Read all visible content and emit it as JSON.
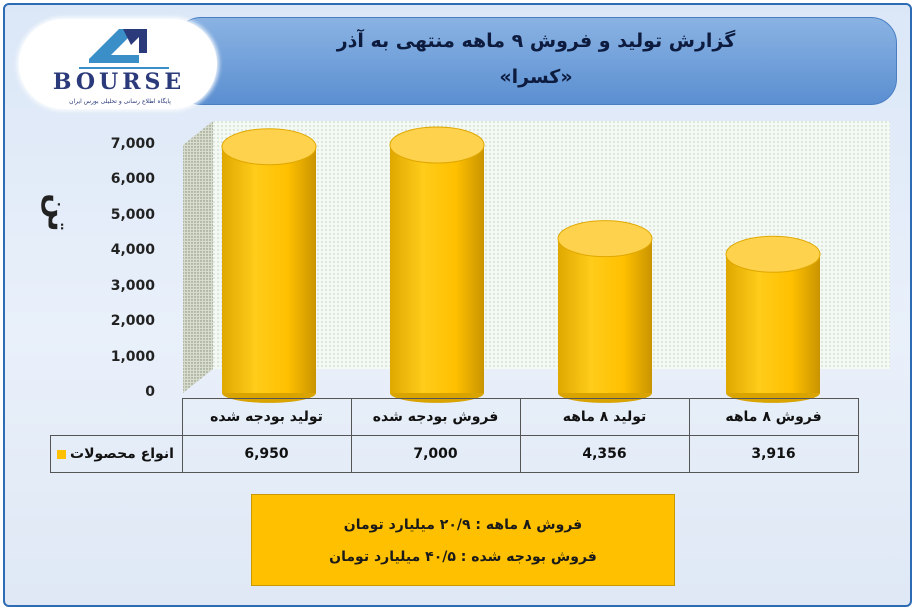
{
  "header": {
    "title": "گزارش تولید و فروش ۹ ماهه منتهی به آذر",
    "subtitle": "«کسرا»"
  },
  "logo": {
    "word": "BOURSE",
    "tagline": "پایگاه اطلاع رسانی و تحلیلی بورس ایران"
  },
  "colors": {
    "bar": "#ffc000",
    "bar_dark": "#d9a300",
    "bar_top": "#ffd24d",
    "banner": "#5b8fd1",
    "info_box": "#ffc000"
  },
  "chart_data": {
    "type": "bar",
    "unit_label": "تن",
    "categories": [
      "تولید بودجه شده",
      "فروش بودجه شده",
      "تولید ۸ ماهه",
      "فروش ۸ ماهه"
    ],
    "series": [
      {
        "name": "انواع محصولات",
        "values": [
          6950,
          7000,
          4356,
          3916
        ]
      }
    ],
    "value_labels": [
      "6,950",
      "7,000",
      "4,356",
      "3,916"
    ],
    "y_ticks": [
      "0",
      "1,000",
      "2,000",
      "3,000",
      "4,000",
      "5,000",
      "6,000",
      "7,000"
    ],
    "ylim": [
      0,
      7000
    ],
    "grid": true,
    "legend": "in-table"
  },
  "notes": {
    "line1": "فروش ۸ ماهه : ۲۰/۹ میلیارد تومان",
    "line2": "فروش بودجه شده : ۴۰/۵ میلیارد تومان"
  }
}
